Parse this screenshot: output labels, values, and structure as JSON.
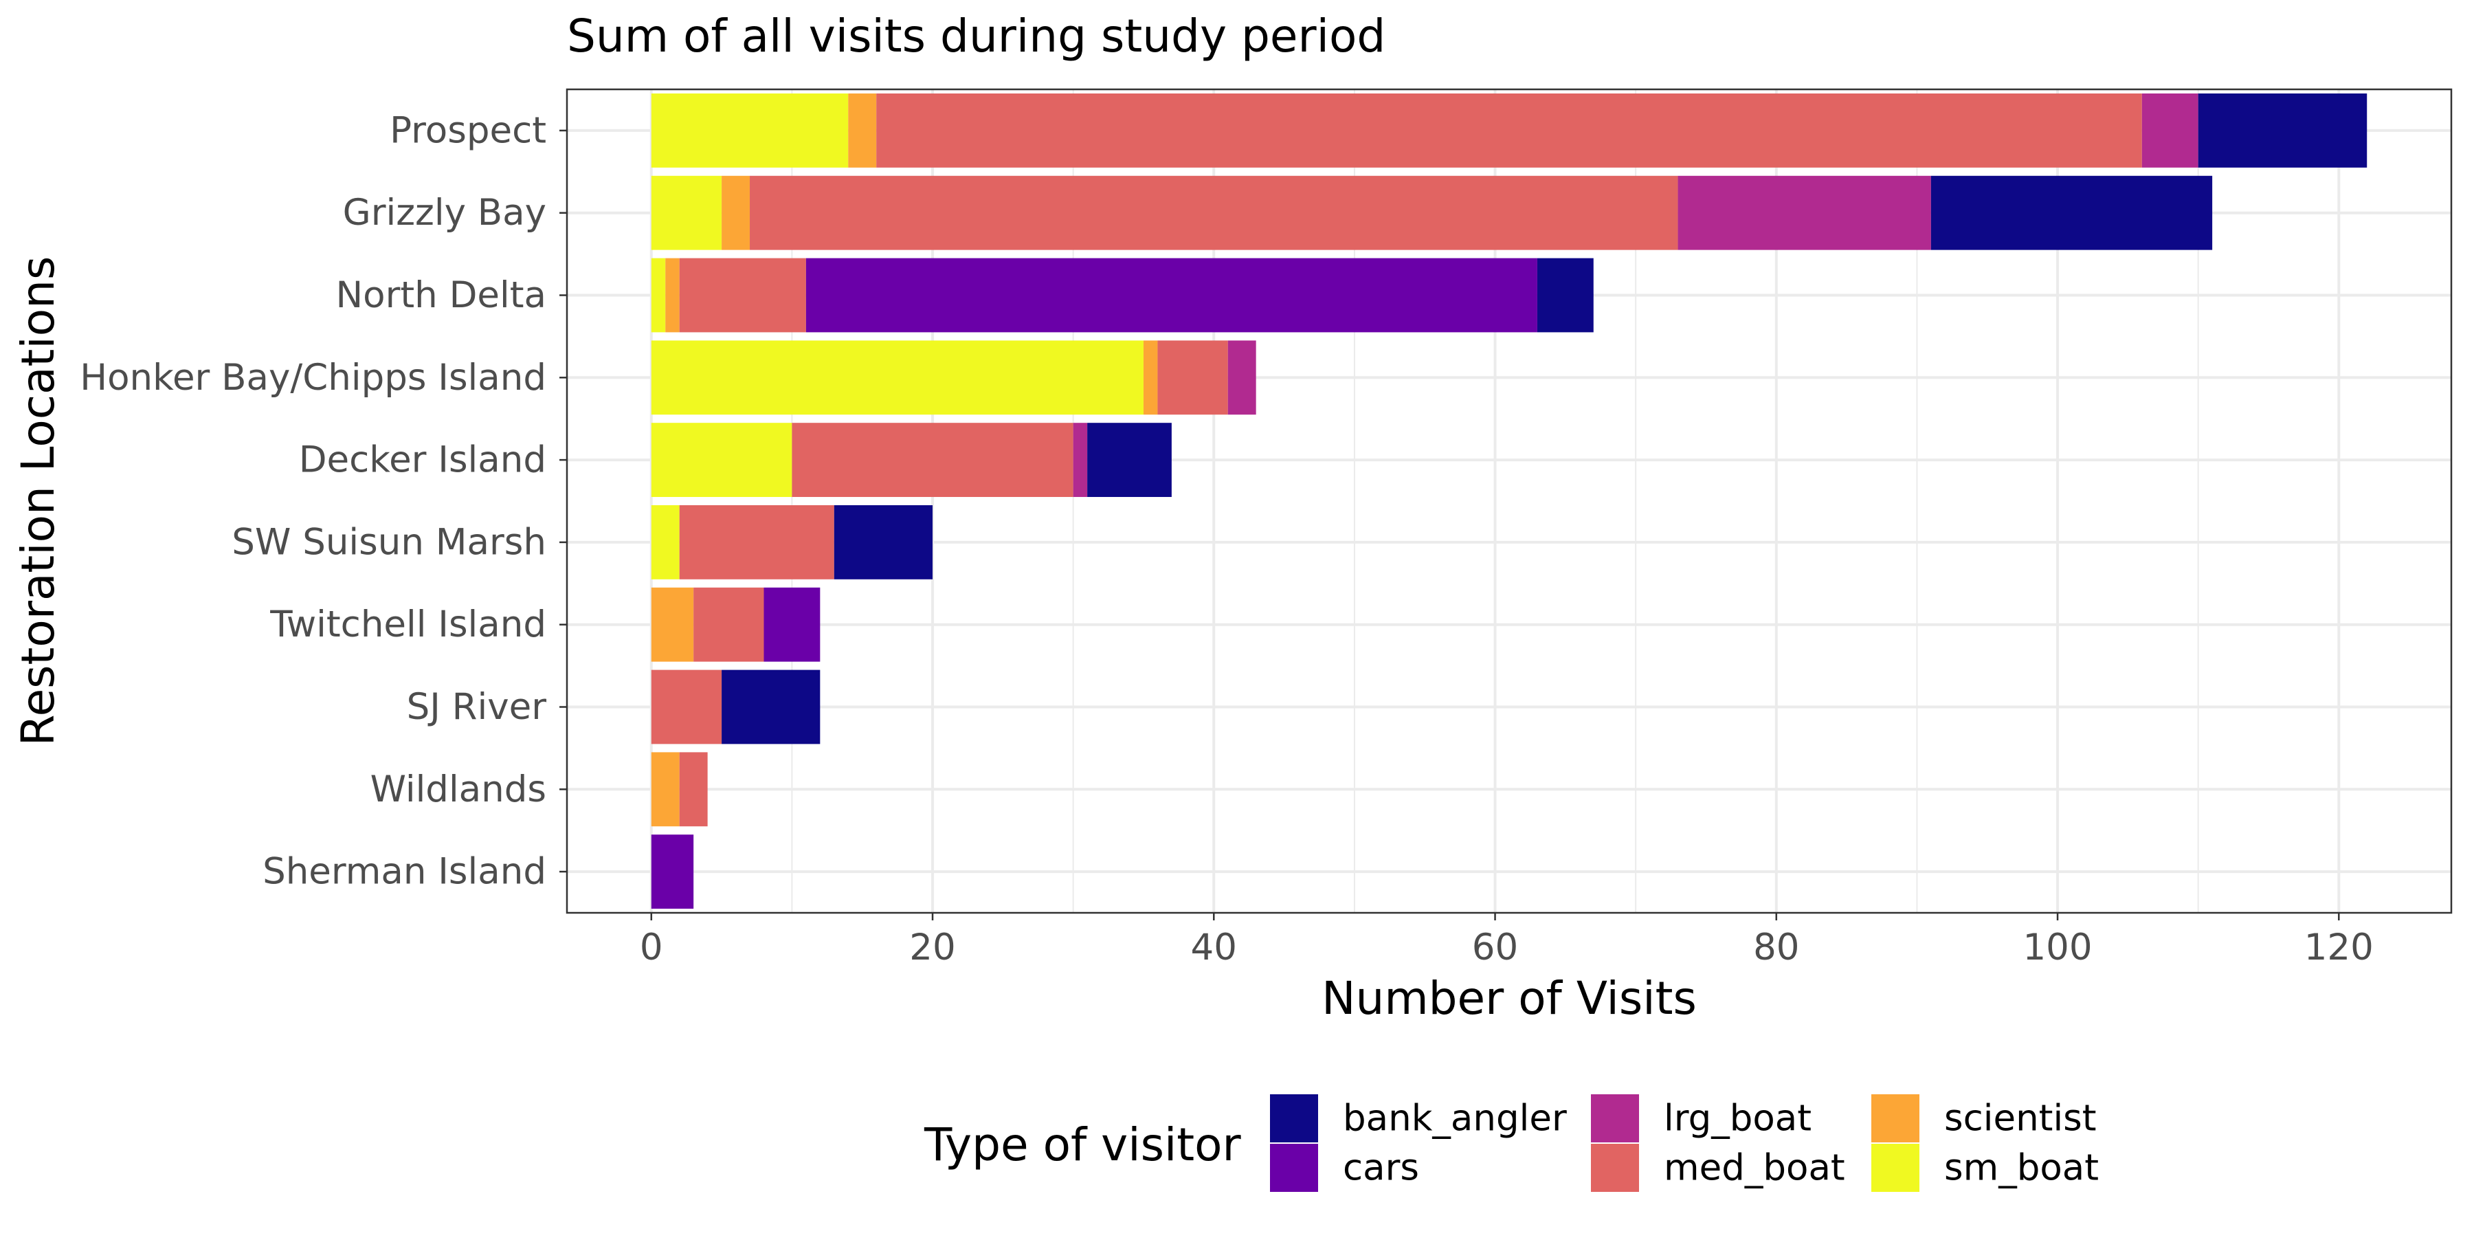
{
  "chart_data": {
    "type": "bar",
    "orientation": "horizontal",
    "stacked": true,
    "title": "Sum of all visits during study period",
    "xlabel": "Number of Visits",
    "ylabel": "Restoration Locations",
    "xlim": [
      -6,
      128
    ],
    "xticks": [
      0,
      20,
      40,
      60,
      80,
      100,
      120
    ],
    "grid": true,
    "legend": {
      "title": "Type of visitor",
      "position": "bottom",
      "entries": [
        "bank_angler",
        "cars",
        "lrg_boat",
        "med_boat",
        "scientist",
        "sm_boat"
      ]
    },
    "categories": [
      "Prospect",
      "Grizzly Bay",
      "North Delta",
      "Honker Bay/Chipps Island",
      "Decker Island",
      "SW Suisun Marsh",
      "Twitchell Island",
      "SJ River",
      "Wildlands",
      "Sherman Island"
    ],
    "series": [
      {
        "name": "sm_boat",
        "color": "#F0F921",
        "values": [
          14,
          5,
          1,
          35,
          10,
          2,
          0,
          0,
          0,
          0
        ]
      },
      {
        "name": "scientist",
        "color": "#FCA636",
        "values": [
          2,
          2,
          1,
          1,
          0,
          0,
          3,
          0,
          2,
          0
        ]
      },
      {
        "name": "med_boat",
        "color": "#E16462",
        "values": [
          90,
          66,
          9,
          5,
          20,
          11,
          5,
          5,
          2,
          0
        ]
      },
      {
        "name": "lrg_boat",
        "color": "#B12A90",
        "values": [
          4,
          18,
          0,
          2,
          1,
          0,
          0,
          0,
          0,
          0
        ]
      },
      {
        "name": "cars",
        "color": "#6A00A8",
        "values": [
          0,
          0,
          52,
          0,
          0,
          0,
          4,
          0,
          0,
          3
        ]
      },
      {
        "name": "bank_angler",
        "color": "#0D0887",
        "values": [
          12,
          20,
          4,
          0,
          6,
          7,
          0,
          7,
          0,
          0
        ]
      }
    ]
  }
}
